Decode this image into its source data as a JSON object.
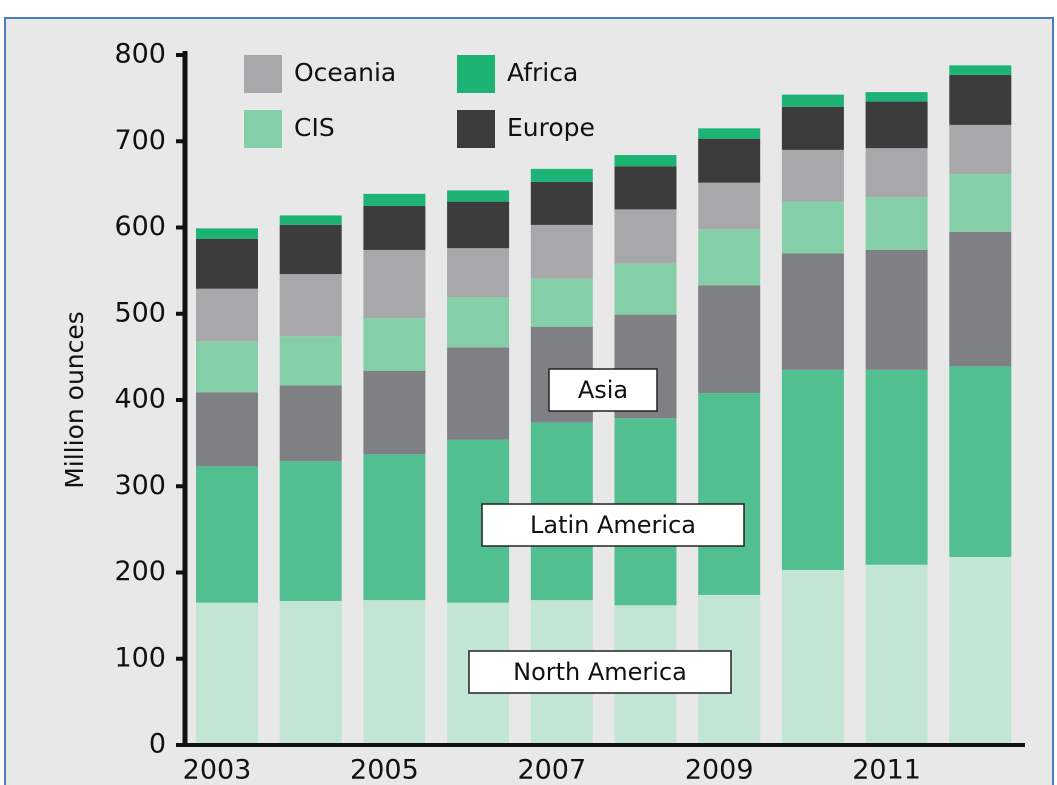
{
  "chart_data": {
    "type": "stacked-bar",
    "y_label": "Million ounces",
    "categories": [
      "2003",
      null,
      "2005",
      null,
      "2007",
      null,
      "2009",
      null,
      "2011",
      null
    ],
    "series": [
      {
        "name": "North America",
        "color": "#c3e6d4",
        "values": [
          165,
          167,
          168,
          165,
          168,
          162,
          174,
          203,
          209,
          218
        ]
      },
      {
        "name": "Latin America",
        "color": "#52bf90",
        "values": [
          158,
          162,
          169,
          189,
          206,
          217,
          234,
          232,
          226,
          221
        ]
      },
      {
        "name": "Asia",
        "color": "#7f8083",
        "values": [
          86,
          88,
          97,
          107,
          111,
          120,
          125,
          135,
          139,
          156
        ]
      },
      {
        "name": "CIS",
        "color": "#84cfa8",
        "values": [
          59,
          57,
          61,
          58,
          56,
          59,
          65,
          60,
          61,
          67
        ]
      },
      {
        "name": "Oceania",
        "color": "#a8a8aa",
        "values": [
          61,
          72,
          79,
          57,
          62,
          63,
          54,
          60,
          57,
          57
        ]
      },
      {
        "name": "Europe",
        "color": "#3c3c3c",
        "values": [
          58,
          57,
          51,
          54,
          50,
          50,
          51,
          50,
          54,
          58
        ]
      },
      {
        "name": "Africa",
        "color": "#1db375",
        "values": [
          12,
          11,
          14,
          13,
          15,
          13,
          12,
          14,
          11,
          11
        ]
      }
    ],
    "ylim": [
      0,
      800
    ],
    "yticks": [
      0,
      100,
      200,
      300,
      400,
      500,
      600,
      700,
      800
    ]
  }
}
